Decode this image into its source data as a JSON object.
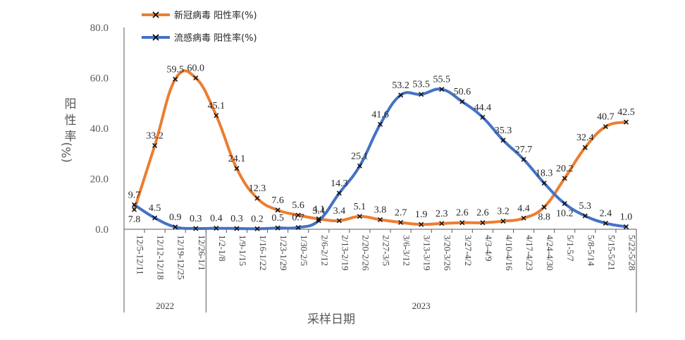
{
  "chart_data": {
    "type": "line",
    "x": [
      "12/5-12/11",
      "12/12-12/18",
      "12/19-12/25",
      "12/26-1/1",
      "1/2-1/8",
      "1/9-1/15",
      "1/16-1/22",
      "1/23-1/29",
      "1/30-2/5",
      "2/6-2/12",
      "2/13-2/19",
      "2/20-2/26",
      "2/27-3/5",
      "3/6-3/12",
      "3/13-3/19",
      "3/20-3/26",
      "3/27-4/2",
      "4/3-4/9",
      "4/10-4/16",
      "4/17-4/23",
      "4/24-4/30",
      "5/1-5/7",
      "5/8-5/14",
      "5/15-5/21",
      "5/22-5/28"
    ],
    "x_labels": [
      "12/5-12/11",
      "12/12-12/18",
      "12/19-12/25",
      "12/26-1/1",
      "1/2-1/8",
      "1/9-1/15",
      "1/16-1/22",
      "1/23-1/29",
      "1/30-2/5",
      "2/6-2/12",
      "2/13-2/19",
      "2/20-2/26",
      "2/27-3/5",
      "3/6-3/12",
      "3/13-3/19",
      "3/20-3/26",
      "3/27-4/2",
      "4/3-4/9",
      "4/10-4/16",
      "4/17-4/23",
      "4/24-4/30",
      "5/1-5/7",
      "5/8-5/14",
      "5/15-5/21",
      "5/22-5/28"
    ],
    "year_groups": [
      {
        "label": "2022",
        "count": 4
      },
      {
        "label": "2023",
        "count": 21
      }
    ],
    "series": [
      {
        "name": "新冠病毒 阳性率(%)",
        "color": "#ED7D31",
        "values": [
          7.8,
          33.2,
          59.5,
          60.0,
          45.1,
          24.1,
          12.3,
          7.6,
          5.6,
          4.1,
          3.4,
          5.1,
          3.8,
          2.7,
          1.9,
          2.3,
          2.6,
          2.6,
          3.2,
          4.4,
          8.8,
          20.2,
          32.4,
          40.7,
          42.5
        ],
        "labels": [
          "7.8",
          "33.2",
          "59.5",
          "60.0",
          "45.1",
          "24.1",
          "12.3",
          "7.6",
          "5.6",
          "4.1",
          "3.4",
          "5.1",
          "3.8",
          "2.7",
          "1.9",
          "2.3",
          "2.6",
          "2.6",
          "3.2",
          "4.4",
          "8.8",
          "20.2",
          "32.4",
          "40.7",
          "42.5"
        ]
      },
      {
        "name": "流感病毒 阳性率(%)",
        "color": "#4472C4",
        "values": [
          9.7,
          4.5,
          0.9,
          0.3,
          0.4,
          0.3,
          0.2,
          0.5,
          0.7,
          3.4,
          14.3,
          25.1,
          41.6,
          53.2,
          53.5,
          55.5,
          50.6,
          44.4,
          35.3,
          27.7,
          18.3,
          10.2,
          5.3,
          2.4,
          1.0
        ],
        "labels": [
          "9.7",
          "4.5",
          "0.9",
          "0.3",
          "0.4",
          "0.3",
          "0.2",
          "0.5",
          "0.7",
          "3.4",
          "14.3",
          "25.1",
          "41.6",
          "53.2",
          "53.5",
          "55.5",
          "50.6",
          "44.4",
          "35.3",
          "27.7",
          "18.3",
          "10.2",
          "5.3",
          "2.4",
          "1.0"
        ]
      }
    ],
    "ylim": [
      0,
      80
    ],
    "yticks": [
      "0.0",
      "20.0",
      "40.0",
      "60.0",
      "80.0"
    ],
    "ytick_values": [
      0,
      20,
      40,
      60,
      80
    ],
    "ylabel_chars": [
      "阳",
      "性",
      "率"
    ],
    "ylabel_unit": "(%)",
    "xlabel": "采样日期",
    "grid": false,
    "legend_position": "top-left",
    "marker": "x"
  }
}
